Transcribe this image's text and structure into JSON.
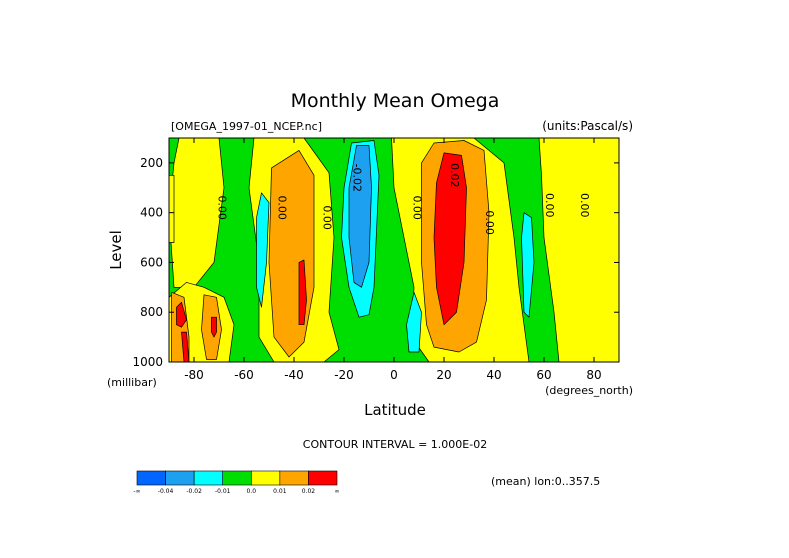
{
  "chart_data": {
    "type": "heatmap",
    "title": "Monthly Mean Omega",
    "dataset_label": "[OMEGA_1997-01_NCEP.nc]",
    "units_label": "(units:Pascal/s)",
    "xlabel": "Latitude",
    "x_units": "(degrees_north)",
    "ylabel": "Level",
    "y_units": "(millibar)",
    "xlim": [
      -90,
      90
    ],
    "ylim": [
      1000,
      100
    ],
    "x_ticks": [
      -80,
      -60,
      -40,
      -20,
      0,
      20,
      40,
      60,
      80
    ],
    "y_ticks": [
      200,
      400,
      600,
      800,
      1000
    ],
    "contour_interval_text": "CONTOUR INTERVAL = 1.000E-02",
    "mean_text": "(mean) lon:0..357.5",
    "contour_labels": [
      {
        "text": "0.00",
        "lat": -69,
        "level": 380
      },
      {
        "text": "0.00",
        "lat": -45,
        "level": 380
      },
      {
        "text": "0.00",
        "lat": -27,
        "level": 420
      },
      {
        "text": "-0.02",
        "lat": -15,
        "level": 260
      },
      {
        "text": "0.00",
        "lat": 9,
        "level": 380
      },
      {
        "text": "0.02",
        "lat": 24,
        "level": 250
      },
      {
        "text": "0.00",
        "lat": 38,
        "level": 440
      },
      {
        "text": "0.00",
        "lat": 62,
        "level": 370
      },
      {
        "text": "0.00",
        "lat": 76,
        "level": 370
      }
    ],
    "colorbar": {
      "colors": [
        "#0066ff",
        "#1ea0f0",
        "#00ffff",
        "#00dd00",
        "#ffff00",
        "#ffa500",
        "#ff0000"
      ],
      "labels": [
        "-∞",
        "-0.04",
        "-0.02",
        "-0.01",
        "0.0",
        "0.01",
        "0.02",
        "∞"
      ]
    },
    "bands": [
      {
        "color": "#00dd00",
        "pts": [
          [
            -90,
            100
          ],
          [
            90,
            100
          ],
          [
            90,
            1000
          ],
          [
            -90,
            1000
          ]
        ]
      },
      {
        "color": "#ffff00",
        "pts": [
          [
            -86,
            100
          ],
          [
            -70,
            100
          ],
          [
            -68,
            300
          ],
          [
            -72,
            600
          ],
          [
            -80,
            700
          ],
          [
            -88,
            700
          ],
          [
            -90,
            400
          ],
          [
            -88,
            200
          ]
        ]
      },
      {
        "color": "#ffff00",
        "pts": [
          [
            -90,
            250
          ],
          [
            -88,
            250
          ],
          [
            -88,
            520
          ],
          [
            -90,
            520
          ]
        ]
      },
      {
        "color": "#ffff00",
        "pts": [
          [
            -90,
            740
          ],
          [
            -83,
            680
          ],
          [
            -76,
            700
          ],
          [
            -68,
            740
          ],
          [
            -64,
            850
          ],
          [
            -66,
            1000
          ],
          [
            -90,
            1000
          ]
        ]
      },
      {
        "color": "#ffff00",
        "pts": [
          [
            -56,
            100
          ],
          [
            -36,
            100
          ],
          [
            -26,
            240
          ],
          [
            -24,
            500
          ],
          [
            -26,
            800
          ],
          [
            -22,
            950
          ],
          [
            -28,
            1000
          ],
          [
            -48,
            1000
          ],
          [
            -54,
            900
          ],
          [
            -54,
            600
          ],
          [
            -58,
            300
          ]
        ]
      },
      {
        "color": "#ffff00",
        "pts": [
          [
            -1,
            100
          ],
          [
            12,
            100
          ],
          [
            32,
            100
          ],
          [
            44,
            200
          ],
          [
            48,
            500
          ],
          [
            50,
            700
          ],
          [
            54,
            1000
          ],
          [
            14,
            1000
          ],
          [
            7,
            900
          ],
          [
            8,
            700
          ],
          [
            4,
            500
          ],
          [
            0,
            300
          ]
        ]
      },
      {
        "color": "#ffff00",
        "pts": [
          [
            58,
            100
          ],
          [
            90,
            100
          ],
          [
            90,
            1000
          ],
          [
            66,
            1000
          ],
          [
            64,
            800
          ],
          [
            60,
            500
          ],
          [
            59,
            250
          ]
        ]
      },
      {
        "color": "#ffa500",
        "pts": [
          [
            -49,
            220
          ],
          [
            -38,
            150
          ],
          [
            -32,
            250
          ],
          [
            -32,
            700
          ],
          [
            -36,
            920
          ],
          [
            -42,
            980
          ],
          [
            -48,
            900
          ],
          [
            -50,
            600
          ]
        ]
      },
      {
        "color": "#ffa500",
        "pts": [
          [
            -89,
            720
          ],
          [
            -84,
            740
          ],
          [
            -82,
            900
          ],
          [
            -82,
            1000
          ],
          [
            -89,
            1000
          ]
        ]
      },
      {
        "color": "#ffa500",
        "pts": [
          [
            -76,
            730
          ],
          [
            -71,
            740
          ],
          [
            -69,
            870
          ],
          [
            -71,
            990
          ],
          [
            -75,
            990
          ],
          [
            -77,
            870
          ]
        ]
      },
      {
        "color": "#ffa500",
        "pts": [
          [
            11,
            200
          ],
          [
            16,
            120
          ],
          [
            28,
            110
          ],
          [
            36,
            150
          ],
          [
            38,
            400
          ],
          [
            37,
            750
          ],
          [
            33,
            920
          ],
          [
            26,
            960
          ],
          [
            16,
            940
          ],
          [
            13,
            850
          ],
          [
            11,
            600
          ]
        ]
      },
      {
        "color": "#ff0000",
        "pts": [
          [
            -38,
            600
          ],
          [
            -36,
            590
          ],
          [
            -35,
            750
          ],
          [
            -36,
            850
          ],
          [
            -38,
            850
          ]
        ]
      },
      {
        "color": "#ff0000",
        "pts": [
          [
            -87,
            780
          ],
          [
            -85,
            760
          ],
          [
            -83,
            830
          ],
          [
            -85,
            860
          ],
          [
            -87,
            850
          ]
        ]
      },
      {
        "color": "#ff0000",
        "pts": [
          [
            -85,
            880
          ],
          [
            -83,
            880
          ],
          [
            -82,
            1000
          ],
          [
            -84,
            1000
          ]
        ]
      },
      {
        "color": "#ff0000",
        "pts": [
          [
            17,
            280
          ],
          [
            20,
            160
          ],
          [
            27,
            170
          ],
          [
            29,
            300
          ],
          [
            28,
            600
          ],
          [
            25,
            800
          ],
          [
            20,
            850
          ],
          [
            17,
            700
          ],
          [
            16,
            500
          ]
        ]
      },
      {
        "color": "#ff0000",
        "pts": [
          [
            -73,
            820
          ],
          [
            -71,
            820
          ],
          [
            -71,
            880
          ],
          [
            -72,
            900
          ],
          [
            -73,
            880
          ]
        ]
      },
      {
        "color": "#00ffff",
        "pts": [
          [
            -20,
            300
          ],
          [
            -17,
            120
          ],
          [
            -8,
            110
          ],
          [
            -6,
            250
          ],
          [
            -8,
            700
          ],
          [
            -10,
            810
          ],
          [
            -14,
            820
          ],
          [
            -18,
            700
          ],
          [
            -21,
            500
          ]
        ]
      },
      {
        "color": "#00ffff",
        "pts": [
          [
            -55,
            420
          ],
          [
            -53,
            320
          ],
          [
            -50,
            360
          ],
          [
            -51,
            600
          ],
          [
            -53,
            780
          ],
          [
            -55,
            700
          ]
        ]
      },
      {
        "color": "#00ffff",
        "pts": [
          [
            5,
            850
          ],
          [
            8,
            720
          ],
          [
            11,
            800
          ],
          [
            10,
            960
          ],
          [
            6,
            960
          ]
        ]
      },
      {
        "color": "#00ffff",
        "pts": [
          [
            51,
            500
          ],
          [
            52,
            400
          ],
          [
            55,
            420
          ],
          [
            56,
            600
          ],
          [
            54,
            820
          ],
          [
            52,
            800
          ]
        ]
      },
      {
        "color": "#1ea0f0",
        "pts": [
          [
            -18,
            300
          ],
          [
            -15,
            130
          ],
          [
            -10,
            130
          ],
          [
            -9,
            300
          ],
          [
            -10,
            600
          ],
          [
            -13,
            700
          ],
          [
            -16,
            680
          ],
          [
            -18,
            500
          ]
        ]
      }
    ]
  }
}
